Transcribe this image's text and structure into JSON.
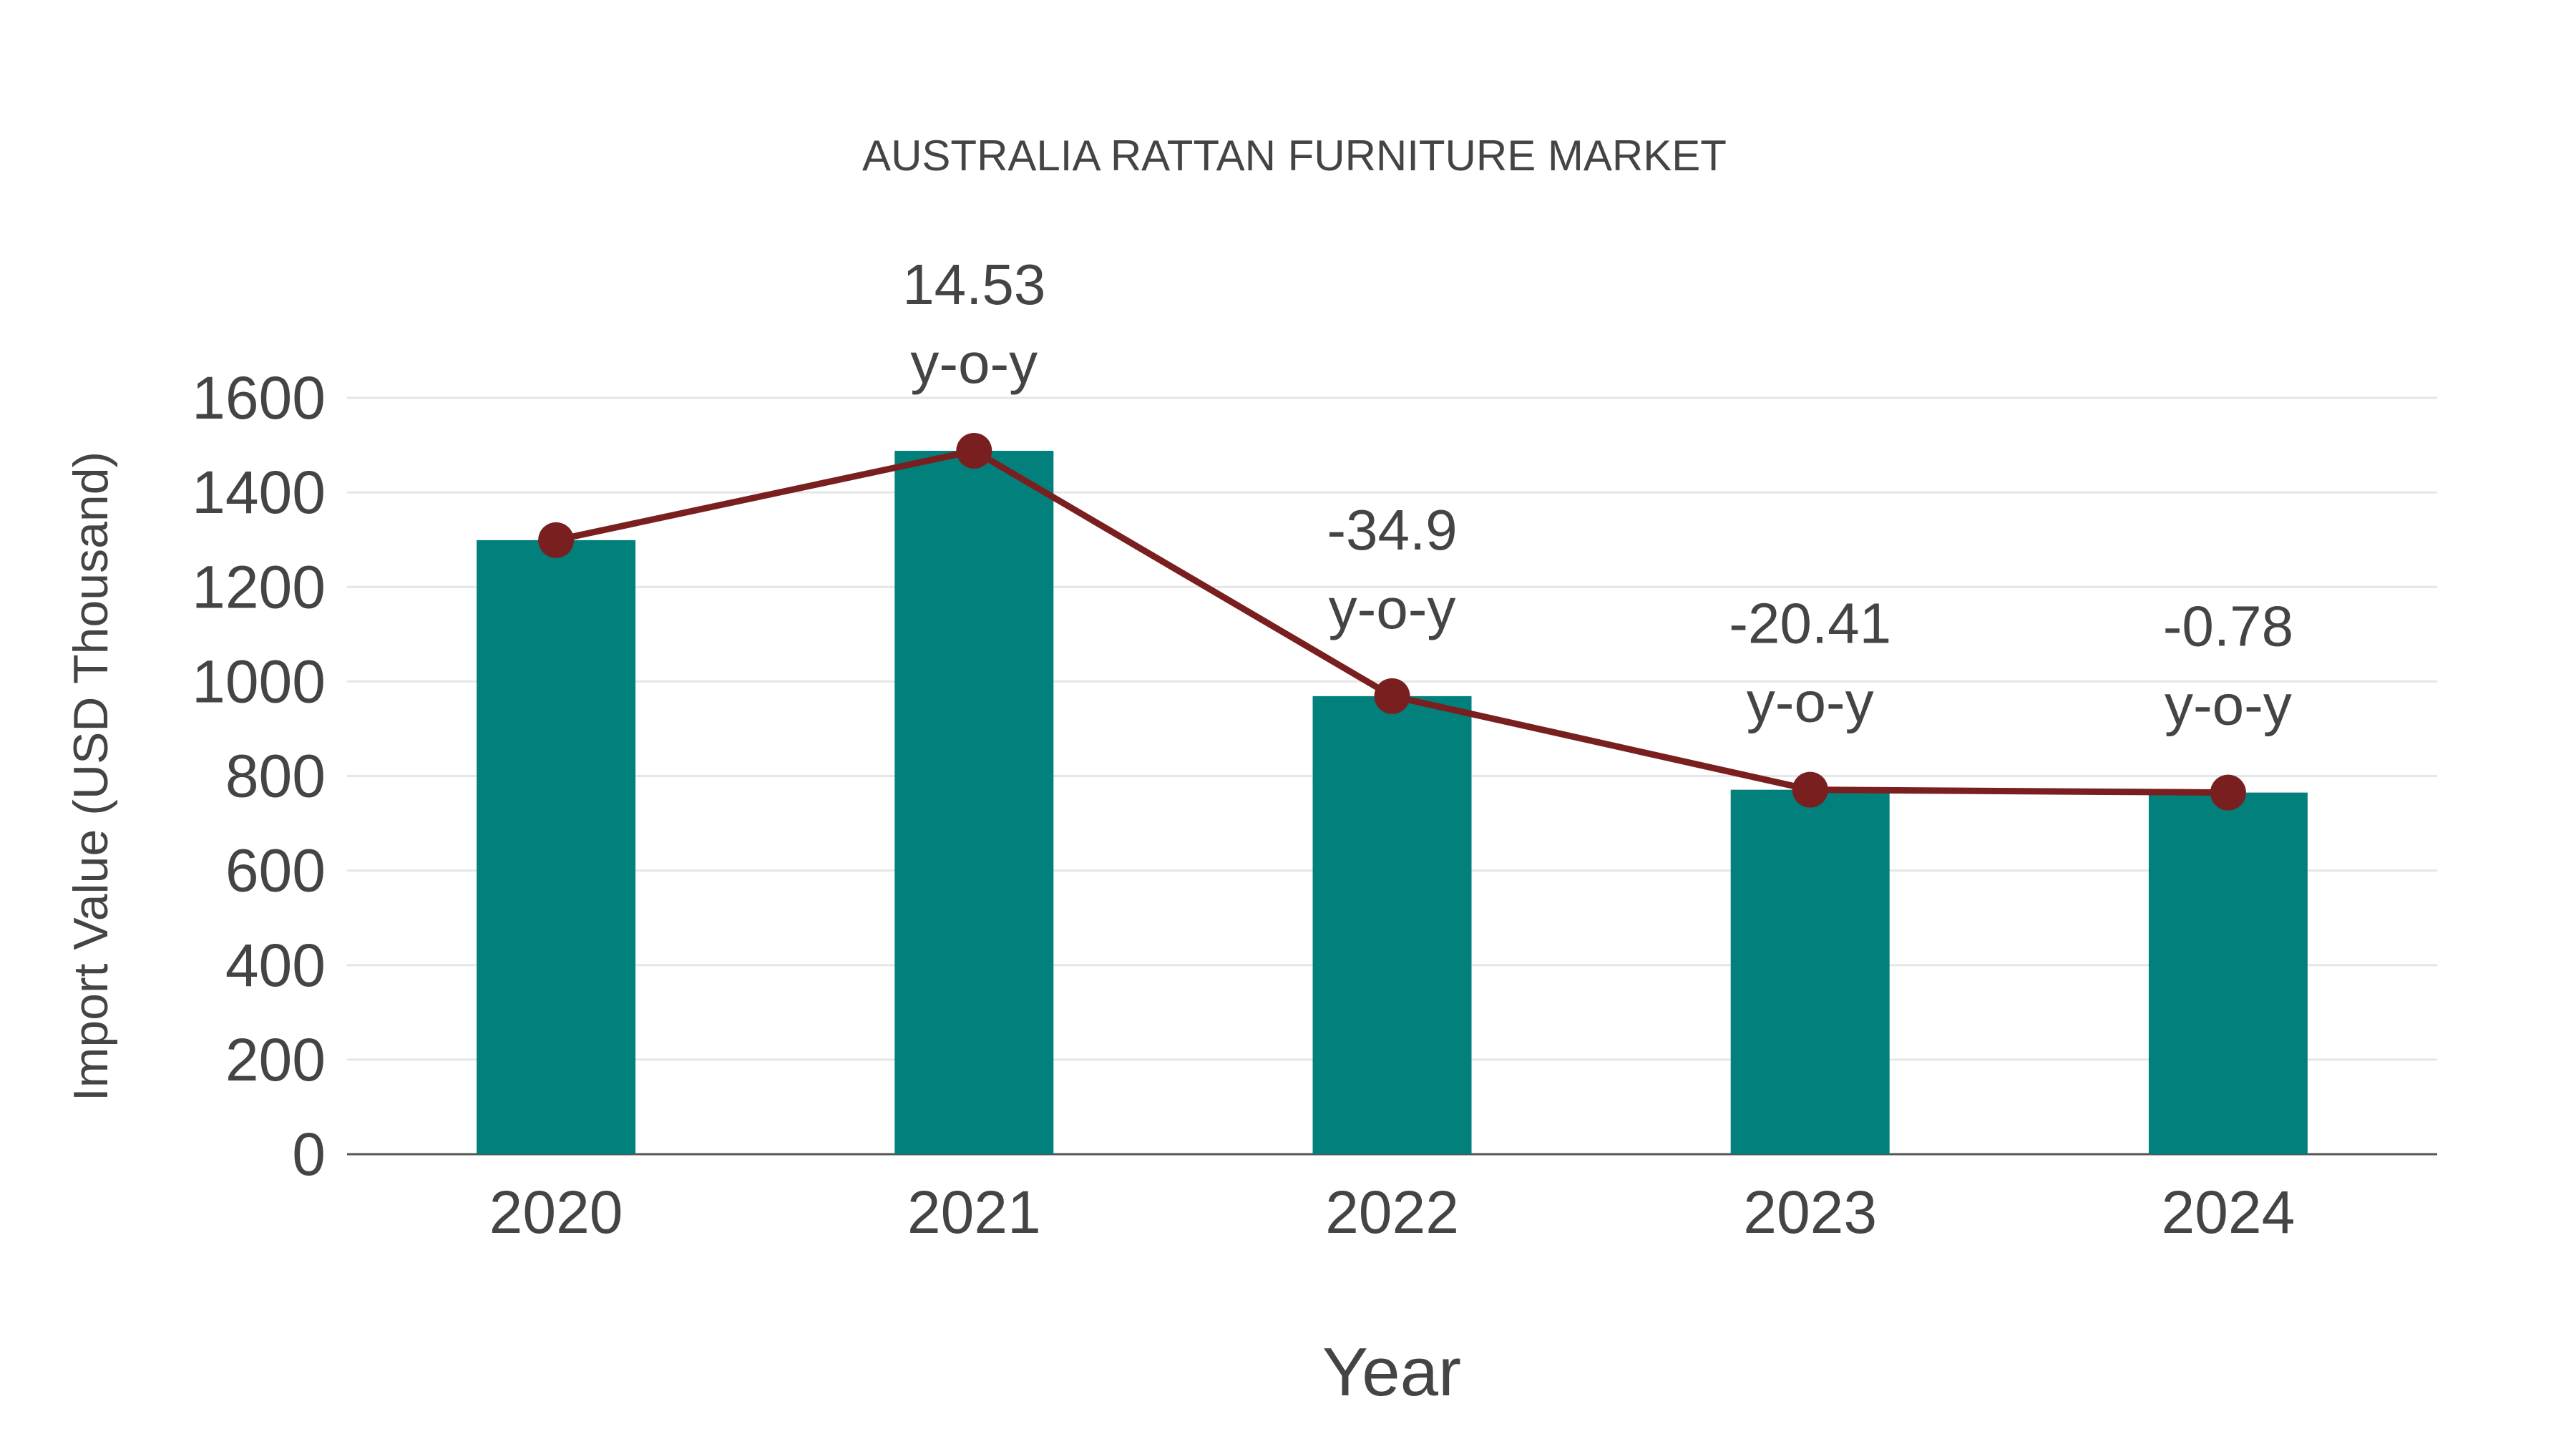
{
  "chart_data": {
    "type": "bar",
    "title": "AUSTRALIA RATTAN FURNITURE MARKET",
    "xlabel": "Year",
    "ylabel": "Import Value (USD Thousand)",
    "categories": [
      "2020",
      "2021",
      "2022",
      "2023",
      "2024"
    ],
    "series": [
      {
        "name": "Import Value",
        "type": "bar",
        "values": [
          1299,
          1488,
          969,
          771,
          765
        ]
      },
      {
        "name": "Trend",
        "type": "line",
        "values": [
          1299,
          1488,
          969,
          771,
          765
        ]
      }
    ],
    "annotations": [
      {
        "category": "2021",
        "value": "14.53",
        "label": "y-o-y"
      },
      {
        "category": "2022",
        "value": "-34.9",
        "label": "y-o-y"
      },
      {
        "category": "2023",
        "value": "-20.41",
        "label": "y-o-y"
      },
      {
        "category": "2024",
        "value": "-0.78",
        "label": "y-o-y"
      }
    ],
    "yticks": [
      "0",
      "200",
      "400",
      "600",
      "800",
      "1000",
      "1200",
      "1400",
      "1600"
    ],
    "ylim": [
      0,
      1600
    ],
    "grid": true,
    "colors": {
      "bar": "#02807C",
      "line": "#7A1F1F",
      "grid": "#e6e6e6",
      "axis": "#555555"
    }
  }
}
